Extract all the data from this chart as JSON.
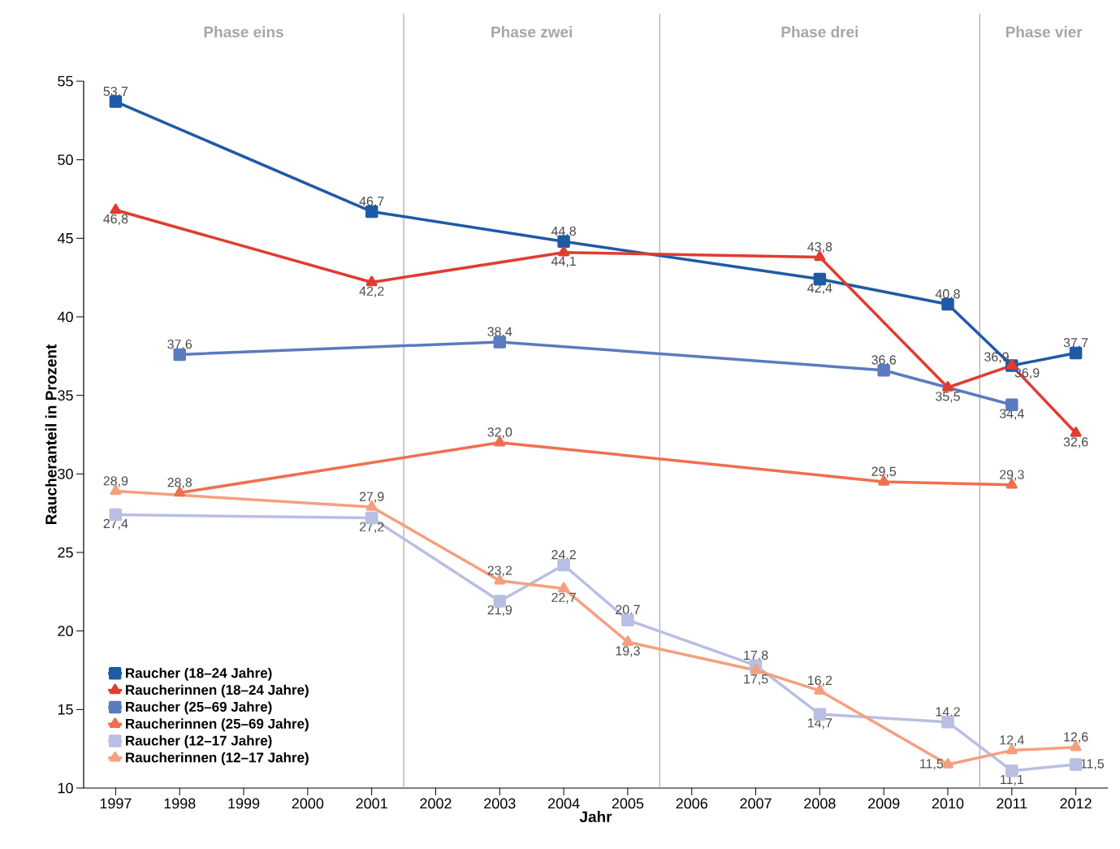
{
  "chart_data": {
    "type": "line",
    "xlabel": "Jahr",
    "ylabel": "Raucheranteil in Prozent",
    "xlim": [
      1996.5,
      2012.5
    ],
    "xticks": [
      1997,
      1998,
      1999,
      2000,
      2001,
      2002,
      2003,
      2004,
      2005,
      2006,
      2007,
      2008,
      2009,
      2010,
      2011,
      2012
    ],
    "ylim": [
      10,
      55
    ],
    "yticks": [
      10,
      15,
      20,
      25,
      30,
      35,
      40,
      45,
      50,
      55
    ],
    "legend": "bottom left",
    "ref_lines": [
      {
        "axis": "x",
        "value": 2001.5,
        "color": "#a6a6a6"
      },
      {
        "axis": "x",
        "value": 2005.5,
        "color": "#a6a6a6"
      },
      {
        "axis": "x",
        "value": 2010.5,
        "color": "#a6a6a6"
      }
    ],
    "annotations": [
      "Phase eins",
      "Phase zwei",
      "Phase drei",
      "Phase vier"
    ],
    "series": [
      {
        "name": "Raucher (18–24 Jahre)",
        "color": "#1f5aa6",
        "marker": "square",
        "x": [
          1997,
          2001,
          2004,
          2008,
          2010,
          2011,
          2012
        ],
        "values": [
          53.7,
          46.7,
          44.8,
          42.4,
          40.8,
          36.9,
          37.7
        ],
        "value_labels": [
          "53,7",
          "46,7",
          "44,8",
          "42,4",
          "40,8",
          "36,9",
          "37,7"
        ]
      },
      {
        "name": "Raucherinnen (18–24 Jahre)",
        "color": "#e03c31",
        "marker": "triangle",
        "x": [
          1997,
          2001,
          2004,
          2008,
          2010,
          2011,
          2012
        ],
        "values": [
          46.8,
          42.2,
          44.1,
          43.8,
          35.5,
          36.9,
          32.6
        ],
        "value_labels": [
          "46,8",
          "42,2",
          "44,1",
          "43,8",
          "35,5",
          "36,9",
          "32,6"
        ]
      },
      {
        "name": "Raucher (25–69 Jahre)",
        "color": "#5b7bbf",
        "marker": "square",
        "x": [
          1998,
          2003,
          2009,
          2011
        ],
        "values": [
          37.6,
          38.4,
          36.6,
          34.4
        ],
        "value_labels": [
          "37,6",
          "38,4",
          "36,6",
          "34,4"
        ]
      },
      {
        "name": "Raucherinnen (25–69 Jahre)",
        "color": "#ef6f4f",
        "marker": "triangle",
        "x": [
          1998,
          2003,
          2009,
          2011
        ],
        "values": [
          28.8,
          32.0,
          29.5,
          29.3
        ],
        "value_labels": [
          "28,8",
          "32,0",
          "29,5",
          "29,3"
        ]
      },
      {
        "name": "Raucher (12–17 Jahre)",
        "color": "#b9bfe3",
        "marker": "square",
        "x": [
          1997,
          2001,
          2003,
          2004,
          2005,
          2007,
          2008,
          2010,
          2011,
          2012
        ],
        "values": [
          27.4,
          27.2,
          21.9,
          24.2,
          20.7,
          17.8,
          14.7,
          14.2,
          11.1,
          11.5
        ],
        "value_labels": [
          "27,4",
          "27,2",
          "21,9",
          "24,2",
          "20,7",
          "17,8",
          "14,7",
          "14,2",
          "11,1",
          "11,5"
        ]
      },
      {
        "name": "Raucherinnen (12–17 Jahre)",
        "color": "#f4a07f",
        "marker": "triangle",
        "x": [
          1997,
          2001,
          2003,
          2004,
          2005,
          2007,
          2008,
          2010,
          2011,
          2012
        ],
        "values": [
          28.9,
          27.9,
          23.2,
          22.7,
          19.3,
          17.5,
          16.2,
          11.5,
          12.4,
          12.6
        ],
        "value_labels": [
          "28,9",
          "27,9",
          "23,2",
          "22,7",
          "19,3",
          "17,5",
          "16,2",
          "11,5",
          "12,4",
          "12,6"
        ]
      }
    ]
  }
}
